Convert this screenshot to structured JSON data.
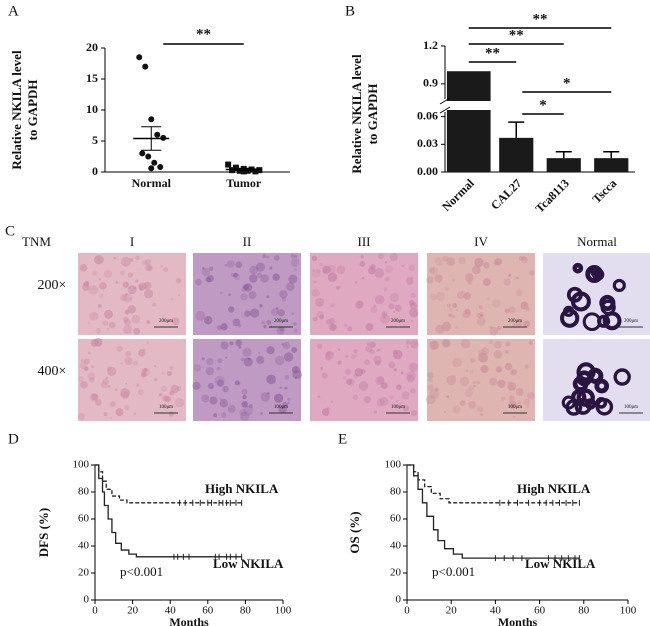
{
  "chart_data": [
    {
      "type": "dot",
      "panel": "A",
      "ylabel": [
        "Relative NKILA  level",
        "to GAPDH"
      ],
      "categories": [
        "Normal",
        "Tumor"
      ],
      "values": [
        [
          18.5,
          17,
          8.5,
          6,
          5.5,
          3,
          2.5,
          1.5,
          0.8,
          0.6
        ],
        [
          1.2,
          0.7,
          0.5,
          0.4,
          0.3,
          0.3,
          0.2,
          0.2,
          0.1,
          0.1
        ]
      ],
      "mean": [
        5.4,
        0.4
      ],
      "sem": [
        1.9,
        0.15
      ],
      "ylim": [
        0,
        20
      ],
      "yticks": [
        0,
        5,
        10,
        15,
        20
      ],
      "color": "#111111",
      "significance": [
        {
          "text": "**",
          "pair": [
            0,
            1
          ]
        }
      ]
    },
    {
      "type": "bar",
      "panel": "B",
      "ylabel": [
        "Relative NKILA level",
        "to GAPDH"
      ],
      "categories": [
        "Normal",
        "CAL27",
        "Tca8113",
        "Tscca"
      ],
      "values": [
        1,
        0.037,
        0.015,
        0.015
      ],
      "errors": [
        null,
        0.017,
        0.007,
        0.007
      ],
      "color": "#1a1a1a",
      "ylim": [
        0,
        1.2
      ],
      "ybreak": [
        0.065,
        0.78
      ],
      "yticks": [
        {
          "value": 0,
          "label": "0.00"
        },
        0.03,
        {
          "value": 0.06,
          "label": "0.06"
        },
        0.9,
        1.2
      ],
      "significance": [
        {
          "text": "**",
          "pair": [
            0,
            3
          ]
        },
        {
          "text": "**",
          "pair": [
            0,
            2
          ]
        },
        {
          "text": "**",
          "pair": [
            0,
            1
          ]
        },
        {
          "text": "*",
          "pair": [
            1,
            3
          ]
        },
        {
          "text": "*",
          "pair": [
            1,
            2
          ]
        }
      ]
    },
    {
      "type": "km",
      "panel": "D",
      "ylabel": "DFS (%)",
      "xlabel": "Months",
      "annotation": "p<0.001",
      "xlim": [
        0,
        100
      ],
      "ylim": [
        0,
        100
      ],
      "xticks": [
        0,
        20,
        40,
        60,
        80,
        100
      ],
      "yticks": [
        0,
        20,
        40,
        60,
        80,
        100
      ],
      "series": [
        {
          "name": "High NKILA",
          "color": "#222222",
          "dash": true,
          "x": [
            0,
            2,
            2,
            4,
            4,
            6,
            6,
            9,
            9,
            13,
            13,
            17,
            17,
            78
          ],
          "values": [
            100,
            100,
            95,
            95,
            88,
            88,
            82,
            82,
            77,
            77,
            74,
            74,
            72,
            72
          ],
          "censored_x": [
            45,
            48,
            52,
            56,
            60,
            62,
            66,
            68,
            70,
            72,
            75,
            78
          ]
        },
        {
          "name": "Low NKILA",
          "color": "#222222",
          "dash": false,
          "x": [
            0,
            2,
            2,
            4,
            4,
            5,
            5,
            7,
            7,
            9,
            9,
            11,
            11,
            14,
            14,
            18,
            18,
            22,
            22,
            78
          ],
          "values": [
            100,
            100,
            90,
            90,
            80,
            80,
            70,
            70,
            60,
            60,
            50,
            50,
            42,
            42,
            37,
            37,
            34,
            34,
            32,
            32
          ],
          "censored_x": [
            42,
            44,
            47,
            50,
            64,
            66,
            70,
            72,
            75,
            78
          ]
        }
      ]
    },
    {
      "type": "km",
      "panel": "E",
      "ylabel": "OS   (%)",
      "xlabel": "Months",
      "annotation": "p<0.001",
      "xlim": [
        0,
        100
      ],
      "ylim": [
        0,
        100
      ],
      "xticks": [
        0,
        20,
        40,
        60,
        80,
        100
      ],
      "yticks": [
        0,
        20,
        40,
        60,
        80,
        100
      ],
      "series": [
        {
          "name": "High NKILA",
          "color": "#222222",
          "dash": true,
          "x": [
            0,
            3,
            3,
            5,
            5,
            8,
            8,
            11,
            11,
            15,
            15,
            19,
            19,
            78
          ],
          "values": [
            100,
            100,
            95,
            95,
            89,
            89,
            84,
            84,
            79,
            79,
            75,
            75,
            72,
            72
          ],
          "censored_x": [
            42,
            46,
            50,
            55,
            60,
            63,
            66,
            69,
            72,
            75,
            78
          ]
        },
        {
          "name": "Low NKILA",
          "color": "#222222",
          "dash": false,
          "x": [
            0,
            3,
            3,
            5,
            5,
            7,
            7,
            9,
            9,
            12,
            12,
            14,
            14,
            17,
            17,
            21,
            21,
            25,
            25,
            78
          ],
          "values": [
            100,
            100,
            92,
            92,
            82,
            82,
            72,
            72,
            62,
            62,
            52,
            52,
            44,
            44,
            38,
            38,
            34,
            34,
            31,
            31
          ],
          "censored_x": [
            40,
            44,
            48,
            52,
            64,
            67,
            70,
            73,
            76,
            78
          ]
        }
      ]
    }
  ],
  "panel_c": {
    "label": "C",
    "row_header": "TNM",
    "columns": [
      "I",
      "II",
      "III",
      "IV",
      "Normal"
    ],
    "rows": [
      "200×",
      "400×"
    ],
    "scale_bars": [
      "200μm",
      "100μm"
    ]
  }
}
